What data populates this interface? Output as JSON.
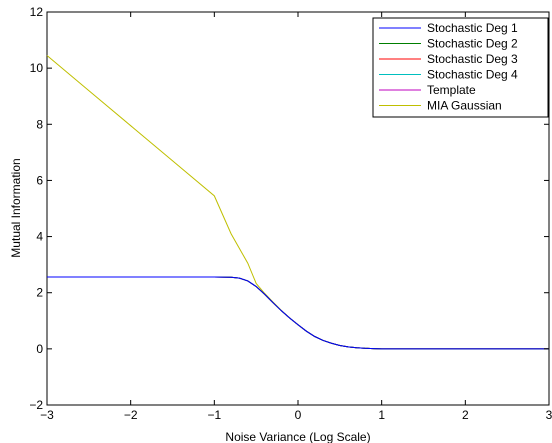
{
  "chart_data": {
    "type": "line",
    "xlabel": "Noise Variance (Log Scale)",
    "ylabel": "Mutual Information",
    "xlim": [
      -3,
      3
    ],
    "ylim": [
      -2,
      12
    ],
    "xticks": [
      -3,
      -2,
      -1,
      0,
      1,
      2,
      3
    ],
    "yticks": [
      -2,
      0,
      2,
      4,
      6,
      8,
      10,
      12
    ],
    "xtick_labels": [
      "−3",
      "−2",
      "−1",
      "0",
      "1",
      "2",
      "3"
    ],
    "ytick_labels": [
      "−2",
      "0",
      "2",
      "4",
      "6",
      "8",
      "10",
      "12"
    ],
    "grid": false,
    "legend_position": "top-right",
    "series": [
      {
        "name": "Stochastic Deg 1",
        "color": "#0000ff",
        "x": [
          -3,
          -2.5,
          -2,
          -1.5,
          -1,
          -0.8,
          -0.7,
          -0.6,
          -0.5,
          -0.4,
          -0.3,
          -0.2,
          -0.1,
          0,
          0.1,
          0.2,
          0.3,
          0.4,
          0.5,
          0.6,
          0.7,
          0.8,
          0.9,
          1,
          1.5,
          2,
          2.5,
          3
        ],
        "y": [
          2.56,
          2.56,
          2.56,
          2.56,
          2.56,
          2.55,
          2.52,
          2.42,
          2.22,
          1.95,
          1.65,
          1.36,
          1.1,
          0.86,
          0.63,
          0.44,
          0.3,
          0.2,
          0.12,
          0.07,
          0.04,
          0.02,
          0.01,
          0.0,
          0.0,
          0.0,
          0.0,
          0.0
        ]
      },
      {
        "name": "Stochastic Deg 2",
        "color": "#007f00",
        "x": [
          -3,
          -2.5,
          -2,
          -1.5,
          -1,
          -0.8,
          -0.7,
          -0.6,
          -0.5,
          -0.4,
          -0.3,
          -0.2,
          -0.1,
          0,
          0.1,
          0.2,
          0.3,
          0.4,
          0.5,
          0.6,
          0.7,
          0.8,
          0.9,
          1,
          1.5,
          2,
          2.5,
          3
        ],
        "y": [
          2.56,
          2.56,
          2.56,
          2.56,
          2.56,
          2.55,
          2.52,
          2.42,
          2.22,
          1.95,
          1.65,
          1.36,
          1.1,
          0.86,
          0.63,
          0.44,
          0.3,
          0.2,
          0.12,
          0.07,
          0.04,
          0.02,
          0.01,
          0.0,
          0.0,
          0.0,
          0.0,
          0.0
        ]
      },
      {
        "name": "Stochastic Deg 3",
        "color": "#ff0000",
        "x": [
          -3,
          -2.5,
          -2,
          -1.5,
          -1,
          -0.8,
          -0.7,
          -0.6,
          -0.5,
          -0.4,
          -0.3,
          -0.2,
          -0.1,
          0,
          0.1,
          0.2,
          0.3,
          0.4,
          0.5,
          0.6,
          0.7,
          0.8,
          0.9,
          1,
          1.5,
          2,
          2.5,
          3
        ],
        "y": [
          2.56,
          2.56,
          2.56,
          2.56,
          2.56,
          2.55,
          2.52,
          2.42,
          2.22,
          1.95,
          1.65,
          1.36,
          1.1,
          0.86,
          0.63,
          0.44,
          0.3,
          0.2,
          0.12,
          0.07,
          0.04,
          0.02,
          0.01,
          0.0,
          0.0,
          0.0,
          0.0,
          0.0
        ]
      },
      {
        "name": "Stochastic Deg 4",
        "color": "#00bfbf",
        "x": [
          -3,
          -2.5,
          -2,
          -1.5,
          -1,
          -0.8,
          -0.7,
          -0.6,
          -0.5,
          -0.4,
          -0.3,
          -0.2,
          -0.1,
          0,
          0.1,
          0.2,
          0.3,
          0.4,
          0.5,
          0.6,
          0.7,
          0.8,
          0.9,
          1,
          1.5,
          2,
          2.5,
          3
        ],
        "y": [
          2.56,
          2.56,
          2.56,
          2.56,
          2.56,
          2.55,
          2.52,
          2.42,
          2.22,
          1.95,
          1.65,
          1.36,
          1.1,
          0.86,
          0.63,
          0.44,
          0.3,
          0.2,
          0.12,
          0.07,
          0.04,
          0.02,
          0.01,
          0.0,
          0.0,
          0.0,
          0.0,
          0.0
        ]
      },
      {
        "name": "Template",
        "color": "#bf00bf",
        "x": [
          -3,
          -2.5,
          -2,
          -1.5,
          -1,
          -0.8,
          -0.7,
          -0.6,
          -0.5,
          -0.4,
          -0.3,
          -0.2,
          -0.1,
          0,
          0.1,
          0.2,
          0.3,
          0.4,
          0.5,
          0.6,
          0.7,
          0.8,
          0.9,
          1,
          1.5,
          2,
          2.5,
          3
        ],
        "y": [
          2.56,
          2.56,
          2.56,
          2.56,
          2.56,
          2.55,
          2.52,
          2.42,
          2.22,
          1.95,
          1.65,
          1.36,
          1.1,
          0.86,
          0.63,
          0.44,
          0.3,
          0.2,
          0.12,
          0.07,
          0.04,
          0.02,
          0.01,
          0.0,
          0.0,
          0.0,
          0.0,
          0.0
        ]
      },
      {
        "name": "MIA Gaussian",
        "color": "#bfbf00",
        "x": [
          -3,
          -2.5,
          -2,
          -1.5,
          -1,
          -0.8,
          -0.6,
          -0.5,
          -0.4,
          -0.3,
          -0.2,
          -0.1,
          0,
          0.1,
          0.2,
          0.3,
          0.4,
          0.5,
          0.6,
          0.7,
          0.8,
          0.9,
          1,
          1.5,
          2,
          2.5,
          3
        ],
        "y": [
          10.45,
          9.2,
          7.95,
          6.7,
          5.45,
          4.1,
          3.05,
          2.33,
          1.98,
          1.67,
          1.37,
          1.1,
          0.86,
          0.63,
          0.44,
          0.3,
          0.2,
          0.12,
          0.07,
          0.04,
          0.02,
          0.01,
          0.0,
          0.0,
          0.0,
          0.0,
          0.0
        ]
      }
    ]
  }
}
